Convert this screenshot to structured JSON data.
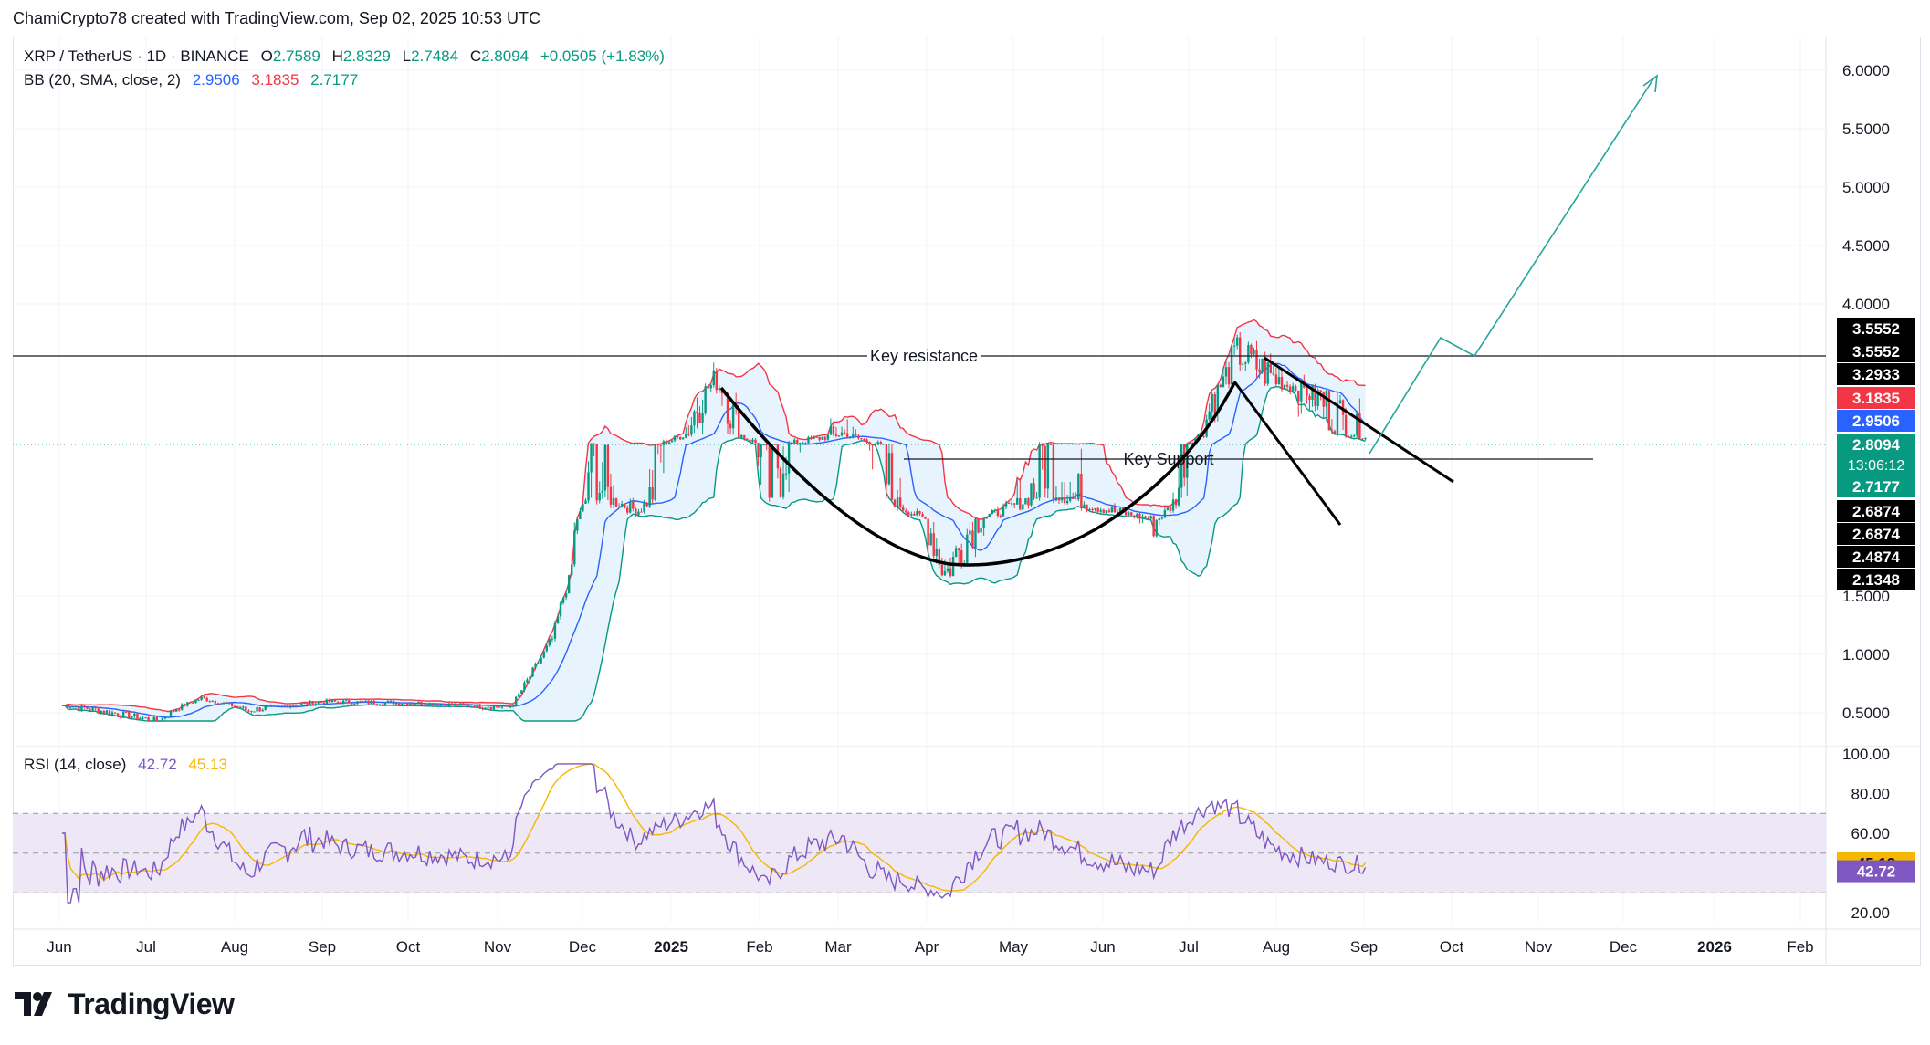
{
  "header": {
    "credit": "ChamiCrypto78 created with TradingView.com, Sep 02, 2025 10:53 UTC"
  },
  "legend": {
    "symbol": "XRP / TetherUS · 1D · BINANCE",
    "o_label": "O",
    "o": "2.7589",
    "h_label": "H",
    "h": "2.8329",
    "l_label": "L",
    "l": "2.7484",
    "c_label": "C",
    "c": "2.8094",
    "change": "+0.0505 (+1.83%)",
    "bb_label": "BB (20, SMA, close, 2)",
    "bb_basis": "2.9506",
    "bb_upper": "3.1835",
    "bb_lower": "2.7177",
    "rsi_label": "RSI (14, close)",
    "rsi_value": "42.72",
    "rsi_ma": "45.13"
  },
  "colors": {
    "up": "#089981",
    "down": "#f23645",
    "basis": "#2962ff",
    "upper": "#f23645",
    "lower": "#089981",
    "bbfill": "#e3f2fd",
    "rsi": "#7e57c2",
    "rsi_ma": "#f5b700",
    "rsi_band": "#ede7f6",
    "projection": "#26a69a",
    "annotation": "#000000"
  },
  "logo": {
    "icon": "tradingview-logo-icon",
    "text": "TradingView"
  },
  "chart_data": [
    {
      "type": "candlestick",
      "title": "XRP / TetherUS · 1D · BINANCE",
      "price_scale_ticks": [
        "6.0000",
        "5.5000",
        "5.0000",
        "4.5000",
        "4.0000",
        "1.5000",
        "1.0000",
        "0.5000"
      ],
      "time_axis_labels": [
        "Jun",
        "Jul",
        "Aug",
        "Sep",
        "Oct",
        "Nov",
        "Dec",
        "2025",
        "Feb",
        "Mar",
        "Apr",
        "May",
        "Jun",
        "Jul",
        "Aug",
        "Sep",
        "Oct",
        "Nov",
        "Dec",
        "2026",
        "Feb"
      ],
      "price_labels": [
        {
          "value": "3.5552",
          "bg": "#000000"
        },
        {
          "value": "3.5552",
          "bg": "#000000"
        },
        {
          "value": "3.2933",
          "bg": "#000000"
        },
        {
          "value": "3.1835",
          "bg": "#f23645"
        },
        {
          "value": "2.9506",
          "bg": "#2962ff"
        },
        {
          "value": "2.8094",
          "bg": "#089981",
          "timer": "13:06:12"
        },
        {
          "value": "2.7177",
          "bg": "#089981"
        },
        {
          "value": "2.6874",
          "bg": "#000000"
        },
        {
          "value": "2.6874",
          "bg": "#000000"
        },
        {
          "value": "2.4874",
          "bg": "#000000"
        },
        {
          "value": "2.1348",
          "bg": "#000000"
        }
      ],
      "annotations": {
        "key_resistance": {
          "label": "Key resistance",
          "price": 3.5552
        },
        "key_support": {
          "label": "Key Support",
          "price": 2.6874
        }
      },
      "close_series_approx": [
        {
          "date": "2024-06-01",
          "close": 0.52
        },
        {
          "date": "2024-07-05",
          "close": 0.42
        },
        {
          "date": "2024-07-20",
          "close": 0.6
        },
        {
          "date": "2024-08-05",
          "close": 0.48
        },
        {
          "date": "2024-09-01",
          "close": 0.56
        },
        {
          "date": "2024-10-01",
          "close": 0.55
        },
        {
          "date": "2024-11-05",
          "close": 0.5
        },
        {
          "date": "2024-11-20",
          "close": 1.1
        },
        {
          "date": "2024-12-03",
          "close": 2.5
        },
        {
          "date": "2024-12-20",
          "close": 2.2
        },
        {
          "date": "2025-01-16",
          "close": 3.3
        },
        {
          "date": "2025-02-03",
          "close": 2.4
        },
        {
          "date": "2025-03-02",
          "close": 2.9
        },
        {
          "date": "2025-04-07",
          "close": 1.8
        },
        {
          "date": "2025-05-12",
          "close": 2.5
        },
        {
          "date": "2025-06-20",
          "close": 2.0
        },
        {
          "date": "2025-07-18",
          "close": 3.55
        },
        {
          "date": "2025-08-15",
          "close": 3.1
        },
        {
          "date": "2025-09-02",
          "close": 2.8094
        }
      ]
    },
    {
      "type": "line",
      "title": "RSI (14, close)",
      "rsi_scale_ticks": [
        "100.00",
        "80.00",
        "60.00",
        "20.00"
      ],
      "overbought": 70,
      "oversold": 30,
      "current": {
        "rsi": 42.72,
        "rsi_ma": 45.13
      }
    }
  ]
}
